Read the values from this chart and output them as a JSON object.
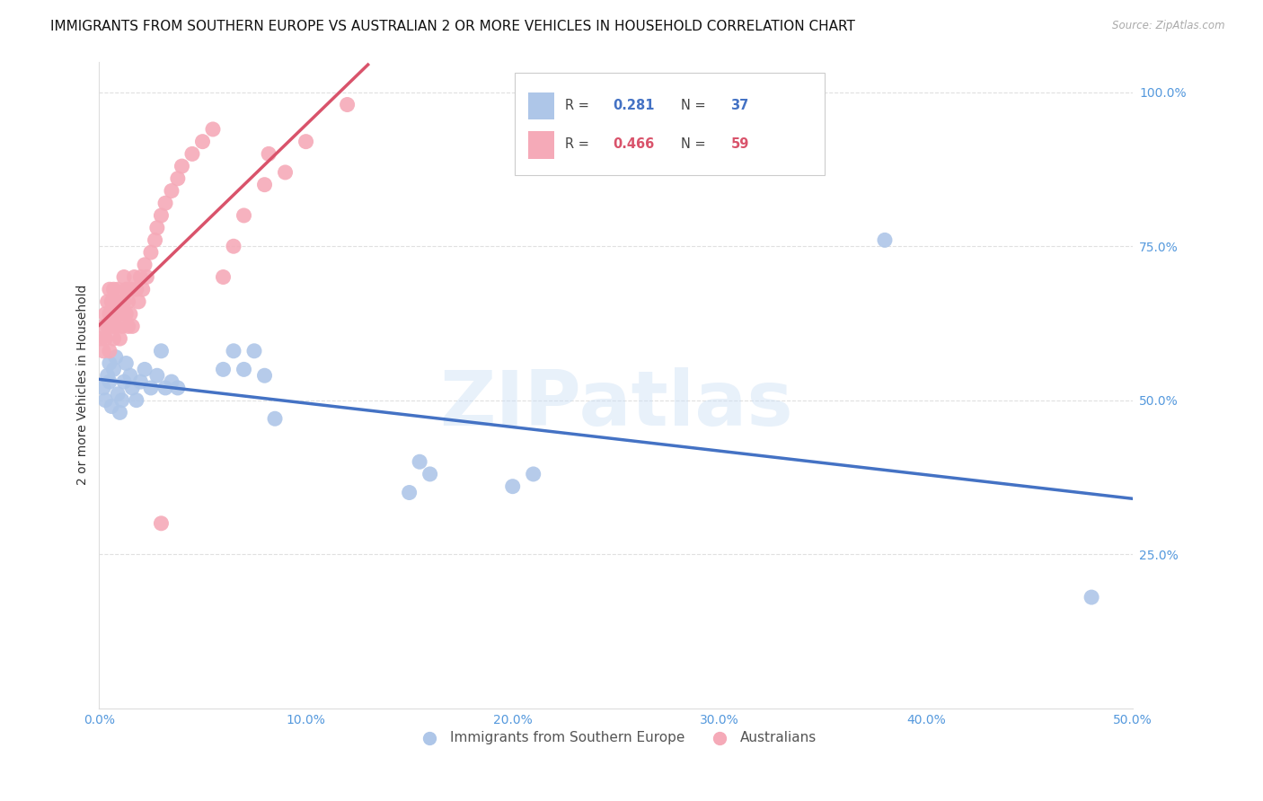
{
  "title": "IMMIGRANTS FROM SOUTHERN EUROPE VS AUSTRALIAN 2 OR MORE VEHICLES IN HOUSEHOLD CORRELATION CHART",
  "source": "Source: ZipAtlas.com",
  "ylabel": "2 or more Vehicles in Household",
  "watermark_text": "ZIPatlas",
  "xlim": [
    0.0,
    0.5
  ],
  "ylim": [
    0.0,
    1.05
  ],
  "xticks": [
    0.0,
    0.1,
    0.2,
    0.3,
    0.4,
    0.5
  ],
  "xtick_labels": [
    "0.0%",
    "10.0%",
    "20.0%",
    "30.0%",
    "40.0%",
    "50.0%"
  ],
  "yticks": [
    0.0,
    0.25,
    0.5,
    0.75,
    1.0
  ],
  "ytick_labels": [
    "",
    "25.0%",
    "50.0%",
    "75.0%",
    "100.0%"
  ],
  "blue_R": "0.281",
  "blue_N": "37",
  "pink_R": "0.466",
  "pink_N": "59",
  "blue_dot_color": "#aec6e8",
  "pink_dot_color": "#f5aab8",
  "blue_line_color": "#4472c4",
  "pink_line_color": "#d9536b",
  "blue_label": "Immigrants from Southern Europe",
  "pink_label": "Australians",
  "grid_color": "#e0e0e0",
  "bg_color": "#ffffff",
  "title_fontsize": 11,
  "tick_fontsize": 10,
  "ylabel_fontsize": 10,
  "tick_color": "#5599dd",
  "text_color": "#333333",
  "blue_x": [
    0.002,
    0.003,
    0.004,
    0.005,
    0.005,
    0.006,
    0.007,
    0.008,
    0.009,
    0.01,
    0.011,
    0.012,
    0.013,
    0.015,
    0.016,
    0.018,
    0.02,
    0.022,
    0.025,
    0.028,
    0.03,
    0.032,
    0.035,
    0.038,
    0.06,
    0.065,
    0.07,
    0.075,
    0.08,
    0.085,
    0.15,
    0.155,
    0.16,
    0.2,
    0.21,
    0.38,
    0.48
  ],
  "blue_y": [
    0.52,
    0.5,
    0.54,
    0.56,
    0.53,
    0.49,
    0.55,
    0.57,
    0.51,
    0.48,
    0.5,
    0.53,
    0.56,
    0.54,
    0.52,
    0.5,
    0.53,
    0.55,
    0.52,
    0.54,
    0.58,
    0.52,
    0.53,
    0.52,
    0.55,
    0.58,
    0.55,
    0.58,
    0.54,
    0.47,
    0.35,
    0.4,
    0.38,
    0.36,
    0.38,
    0.76,
    0.18
  ],
  "pink_x": [
    0.001,
    0.002,
    0.002,
    0.003,
    0.003,
    0.004,
    0.004,
    0.005,
    0.005,
    0.005,
    0.006,
    0.006,
    0.007,
    0.007,
    0.007,
    0.008,
    0.008,
    0.009,
    0.009,
    0.01,
    0.01,
    0.011,
    0.011,
    0.012,
    0.012,
    0.013,
    0.013,
    0.014,
    0.014,
    0.015,
    0.015,
    0.016,
    0.017,
    0.018,
    0.019,
    0.02,
    0.021,
    0.022,
    0.023,
    0.025,
    0.027,
    0.028,
    0.03,
    0.032,
    0.035,
    0.038,
    0.04,
    0.045,
    0.05,
    0.055,
    0.06,
    0.065,
    0.07,
    0.08,
    0.082,
    0.09,
    0.1,
    0.12,
    0.03
  ],
  "pink_y": [
    0.6,
    0.58,
    0.62,
    0.64,
    0.6,
    0.66,
    0.62,
    0.68,
    0.64,
    0.58,
    0.62,
    0.66,
    0.68,
    0.64,
    0.6,
    0.66,
    0.62,
    0.68,
    0.65,
    0.64,
    0.6,
    0.66,
    0.62,
    0.7,
    0.66,
    0.64,
    0.68,
    0.62,
    0.66,
    0.68,
    0.64,
    0.62,
    0.7,
    0.68,
    0.66,
    0.7,
    0.68,
    0.72,
    0.7,
    0.74,
    0.76,
    0.78,
    0.8,
    0.82,
    0.84,
    0.86,
    0.88,
    0.9,
    0.92,
    0.94,
    0.7,
    0.75,
    0.8,
    0.85,
    0.9,
    0.87,
    0.92,
    0.98,
    0.3
  ]
}
